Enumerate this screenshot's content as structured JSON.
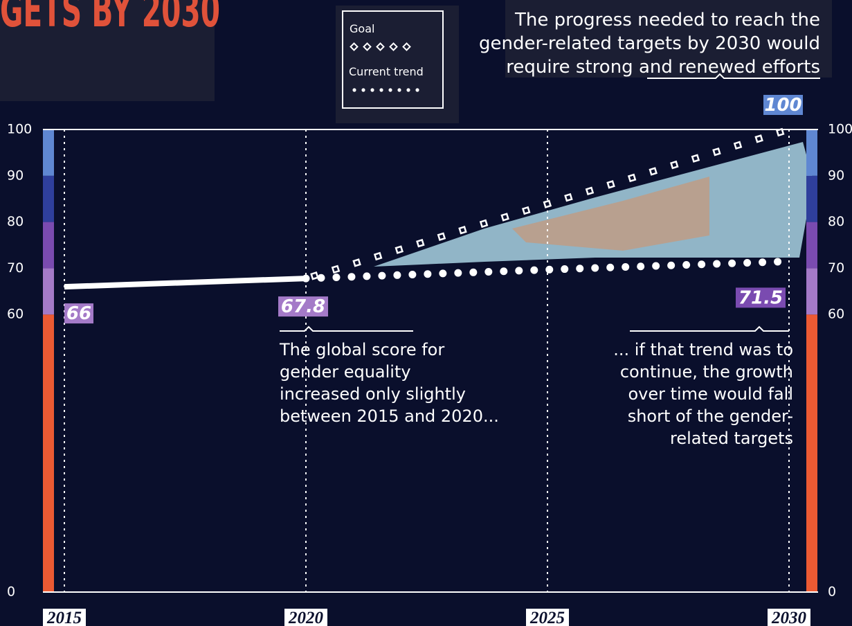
{
  "chart_data": {
    "type": "line",
    "title": "GETS BY 2030",
    "x": [
      2015,
      2020,
      2025,
      2030
    ],
    "xlim": [
      2015,
      2030
    ],
    "xticks": [
      2015,
      2020,
      2025,
      2030
    ],
    "ylim": [
      0,
      100
    ],
    "yticks": [
      0,
      60,
      70,
      80,
      90,
      100
    ],
    "series": [
      {
        "values": [
          66,
          67.8,
          null,
          null
        ],
        "color": "#ffffff",
        "style": "solid"
      },
      {
        "name": "Goal",
        "values": [
          null,
          67.8,
          83.9,
          100
        ],
        "color": "#ffffff",
        "style": "diamond"
      },
      {
        "name": "Current trend",
        "values": [
          null,
          67.8,
          69.7,
          71.5
        ],
        "color": "#ffffff",
        "style": "dot"
      }
    ],
    "bands": [
      {
        "from": 0,
        "to": 60,
        "color": "#ec5a33"
      },
      {
        "from": 60,
        "to": 70,
        "color": "#a47ac8"
      },
      {
        "from": 70,
        "to": 80,
        "color": "#7a4bb0"
      },
      {
        "from": 80,
        "to": 90,
        "color": "#2f3f9c"
      },
      {
        "from": 90,
        "to": 100,
        "color": "#5f87d2"
      }
    ],
    "annotations": [
      {
        "lines": [
          "The progress needed to reach the",
          "gender-related targets by 2030 would",
          "require strong and renewed efforts"
        ]
      },
      {
        "lines": [
          "The global score for",
          "gender equality",
          "increased only slightly",
          "between 2015 and 2020..."
        ]
      },
      {
        "lines": [
          "... if that trend was to",
          "continue, the growth",
          "over time would fall",
          "short of the gender-",
          "related targets"
        ]
      }
    ]
  }
}
